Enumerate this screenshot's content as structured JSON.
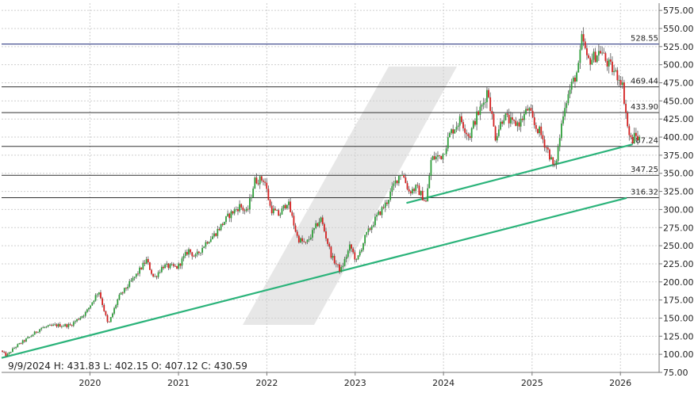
{
  "chart_data": {
    "type": "candlestick",
    "title": "",
    "xlabel": "",
    "ylabel": "",
    "ylim": [
      75,
      585
    ],
    "x_range": [
      "2019-01-01",
      "2026-06-10"
    ],
    "grid": true,
    "y_ticks": [
      75,
      100,
      125,
      150,
      175,
      200,
      225,
      250,
      275,
      300,
      325,
      350,
      375,
      400,
      425,
      450,
      475,
      500,
      525,
      550,
      575
    ],
    "y_tick_labels": [
      "75.00",
      "100.00",
      "125.00",
      "150.00",
      "175.00",
      "200.00",
      "225.00",
      "250.00",
      "275.00",
      "300.00",
      "325.00",
      "350.00",
      "375.00",
      "400.00",
      "425.00",
      "450.00",
      "475.00",
      "500.00",
      "525.00",
      "550.00",
      "575.00"
    ],
    "x_ticks": [
      "2020-01-01",
      "2021-01-01",
      "2022-01-01",
      "2023-01-01",
      "2024-01-01",
      "2025-01-01",
      "2026-01-01"
    ],
    "x_tick_labels": [
      "2020",
      "2021",
      "2022",
      "2023",
      "2024",
      "2025",
      "2026"
    ],
    "info": "9/9/2024   H: 431.83   L: 402.15   O: 407.12   C: 430.59",
    "levels": [
      {
        "value": 528.55,
        "label": "528.55",
        "color": "#1e2a78"
      },
      {
        "value": 469.44,
        "label": "469.44",
        "color": "#333333"
      },
      {
        "value": 433.9,
        "label": "433.90",
        "color": "#333333"
      },
      {
        "value": 387.24,
        "label": "387.24",
        "color": "#333333"
      },
      {
        "value": 347.25,
        "label": "347.25",
        "color": "#333333"
      },
      {
        "value": 316.32,
        "label": "316.32",
        "color": "#333333"
      }
    ],
    "trendlines": [
      {
        "from": [
          "2019-01-01",
          95
        ],
        "to": [
          "2026-01-27",
          316
        ],
        "color": "#2bb37a"
      },
      {
        "from": [
          "2023-08-01",
          309
        ],
        "to": [
          "2026-02-20",
          390
        ],
        "color": "#2bb37a"
      }
    ],
    "price_path": [
      [
        "2019-01-01",
        105
      ],
      [
        "2019-01-25",
        98
      ],
      [
        "2019-03-01",
        110
      ],
      [
        "2019-05-01",
        124
      ],
      [
        "2019-06-15",
        136
      ],
      [
        "2019-08-15",
        140
      ],
      [
        "2019-10-15",
        140
      ],
      [
        "2019-12-20",
        158
      ],
      [
        "2020-02-10",
        188
      ],
      [
        "2020-03-20",
        140
      ],
      [
        "2020-05-01",
        178
      ],
      [
        "2020-07-15",
        210
      ],
      [
        "2020-08-25",
        230
      ],
      [
        "2020-09-25",
        205
      ],
      [
        "2020-11-01",
        222
      ],
      [
        "2020-12-31",
        220
      ],
      [
        "2021-02-15",
        244
      ],
      [
        "2021-03-15",
        234
      ],
      [
        "2021-05-01",
        256
      ],
      [
        "2021-06-01",
        265
      ],
      [
        "2021-08-01",
        292
      ],
      [
        "2021-09-15",
        305
      ],
      [
        "2021-10-15",
        295
      ],
      [
        "2021-11-15",
        340
      ],
      [
        "2021-12-25",
        342
      ],
      [
        "2022-01-20",
        301
      ],
      [
        "2022-02-25",
        292
      ],
      [
        "2022-03-31",
        312
      ],
      [
        "2022-05-12",
        260
      ],
      [
        "2022-06-15",
        252
      ],
      [
        "2022-08-15",
        288
      ],
      [
        "2022-09-30",
        234
      ],
      [
        "2022-11-05",
        215
      ],
      [
        "2022-12-15",
        250
      ],
      [
        "2023-01-10",
        228
      ],
      [
        "2023-02-15",
        262
      ],
      [
        "2023-03-31",
        288
      ],
      [
        "2023-05-15",
        310
      ],
      [
        "2023-06-15",
        335
      ],
      [
        "2023-07-15",
        353
      ],
      [
        "2023-08-15",
        325
      ],
      [
        "2023-09-15",
        330
      ],
      [
        "2023-10-25",
        310
      ],
      [
        "2023-11-15",
        370
      ],
      [
        "2023-12-31",
        375
      ],
      [
        "2024-02-01",
        405
      ],
      [
        "2024-03-15",
        425
      ],
      [
        "2024-04-20",
        400
      ],
      [
        "2024-05-15",
        425
      ],
      [
        "2024-06-15",
        445
      ],
      [
        "2024-07-05",
        467
      ],
      [
        "2024-08-05",
        400
      ],
      [
        "2024-09-09",
        430
      ],
      [
        "2024-10-15",
        418
      ],
      [
        "2024-11-15",
        420
      ],
      [
        "2024-12-20",
        440
      ],
      [
        "2025-01-15",
        415
      ],
      [
        "2025-02-01",
        410
      ],
      [
        "2025-03-15",
        378
      ],
      [
        "2025-04-07",
        355
      ],
      [
        "2025-04-25",
        390
      ],
      [
        "2025-05-15",
        440
      ],
      [
        "2025-06-15",
        470
      ],
      [
        "2025-07-15",
        495
      ],
      [
        "2025-07-31",
        540
      ],
      [
        "2025-08-20",
        505
      ],
      [
        "2025-09-15",
        510
      ],
      [
        "2025-10-15",
        520
      ],
      [
        "2025-11-05",
        505
      ],
      [
        "2025-12-15",
        488
      ],
      [
        "2026-01-10",
        478
      ],
      [
        "2026-01-25",
        440
      ],
      [
        "2026-02-05",
        408
      ],
      [
        "2026-02-20",
        393
      ],
      [
        "2026-03-05",
        402
      ],
      [
        "2026-03-20",
        398
      ]
    ]
  }
}
